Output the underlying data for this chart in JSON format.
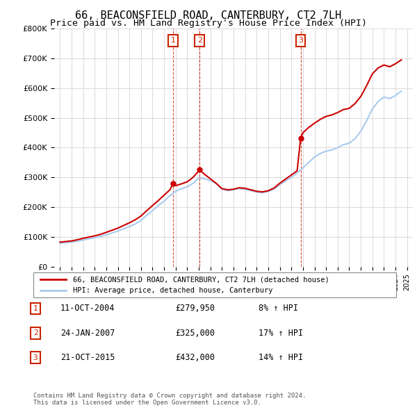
{
  "title": "66, BEACONSFIELD ROAD, CANTERBURY, CT2 7LH",
  "subtitle": "Price paid vs. HM Land Registry's House Price Index (HPI)",
  "title_fontsize": 11,
  "subtitle_fontsize": 9.5,
  "ylabel": "",
  "ylim": [
    0,
    800000
  ],
  "yticks": [
    0,
    100000,
    200000,
    300000,
    400000,
    500000,
    600000,
    700000,
    800000
  ],
  "ytick_labels": [
    "£0",
    "£100K",
    "£200K",
    "£300K",
    "£400K",
    "£500K",
    "£600K",
    "£700K",
    "£800K"
  ],
  "xlim_start": 1994.5,
  "xlim_end": 2025.5,
  "xticks": [
    1995,
    1996,
    1997,
    1998,
    1999,
    2000,
    2001,
    2002,
    2003,
    2004,
    2005,
    2006,
    2007,
    2008,
    2009,
    2010,
    2011,
    2012,
    2013,
    2014,
    2015,
    2016,
    2017,
    2018,
    2019,
    2020,
    2021,
    2022,
    2023,
    2024,
    2025
  ],
  "background_color": "#ffffff",
  "grid_color": "#dddddd",
  "line_color_red": "#cc0000",
  "line_color_blue": "#aaccee",
  "transaction_color": "#cc0000",
  "marker_box_color": "#cc2200",
  "footer_text": "Contains HM Land Registry data © Crown copyright and database right 2024.\nThis data is licensed under the Open Government Licence v3.0.",
  "legend_label_red": "66, BEACONSFIELD ROAD, CANTERBURY, CT2 7LH (detached house)",
  "legend_label_blue": "HPI: Average price, detached house, Canterbury",
  "transactions": [
    {
      "num": 1,
      "year": 2004.78,
      "price": 279950,
      "date": "11-OCT-2004",
      "hpi_pct": "8%"
    },
    {
      "num": 2,
      "year": 2007.07,
      "price": 325000,
      "date": "24-JAN-2007",
      "hpi_pct": "17%"
    },
    {
      "num": 3,
      "year": 2015.8,
      "price": 432000,
      "date": "21-OCT-2015",
      "hpi_pct": "14%"
    }
  ],
  "hpi_data_x": [
    1995,
    1995.5,
    1996,
    1996.5,
    1997,
    1997.5,
    1998,
    1998.5,
    1999,
    1999.5,
    2000,
    2000.5,
    2001,
    2001.5,
    2002,
    2002.5,
    2003,
    2003.5,
    2004,
    2004.5,
    2005,
    2005.5,
    2006,
    2006.5,
    2007,
    2007.5,
    2008,
    2008.5,
    2009,
    2009.5,
    2010,
    2010.5,
    2011,
    2011.5,
    2012,
    2012.5,
    2013,
    2013.5,
    2014,
    2014.5,
    2015,
    2015.5,
    2016,
    2016.5,
    2017,
    2017.5,
    2018,
    2018.5,
    2019,
    2019.5,
    2020,
    2020.5,
    2021,
    2021.5,
    2022,
    2022.5,
    2023,
    2023.5,
    2024,
    2024.5
  ],
  "hpi_data_y": [
    78000,
    80000,
    82000,
    85000,
    89000,
    93000,
    97000,
    101000,
    107000,
    113000,
    119000,
    127000,
    135000,
    143000,
    155000,
    172000,
    188000,
    205000,
    220000,
    238000,
    253000,
    262000,
    268000,
    280000,
    298000,
    295000,
    290000,
    278000,
    260000,
    255000,
    258000,
    262000,
    260000,
    255000,
    250000,
    248000,
    252000,
    260000,
    275000,
    288000,
    300000,
    315000,
    332000,
    350000,
    368000,
    380000,
    388000,
    392000,
    400000,
    410000,
    415000,
    430000,
    455000,
    490000,
    530000,
    555000,
    570000,
    565000,
    575000,
    590000
  ],
  "red_data_x": [
    1995,
    1995.5,
    1996,
    1996.5,
    1997,
    1997.5,
    1998,
    1998.5,
    1999,
    1999.5,
    2000,
    2000.5,
    2001,
    2001.5,
    2002,
    2002.5,
    2003,
    2003.5,
    2004,
    2004.5,
    2004.78,
    2005,
    2005.5,
    2006,
    2006.5,
    2007.07,
    2007.5,
    2008,
    2008.5,
    2009,
    2009.5,
    2010,
    2010.5,
    2011,
    2011.5,
    2012,
    2012.5,
    2013,
    2013.5,
    2014,
    2014.5,
    2015,
    2015.5,
    2015.8,
    2016,
    2016.5,
    2017,
    2017.5,
    2018,
    2018.5,
    2019,
    2019.5,
    2020,
    2020.5,
    2021,
    2021.5,
    2022,
    2022.5,
    2023,
    2023.5,
    2024,
    2024.5
  ],
  "red_data_y": [
    82000,
    84000,
    86000,
    90000,
    95000,
    99000,
    103000,
    108000,
    115000,
    122000,
    129000,
    138000,
    147000,
    157000,
    170000,
    188000,
    205000,
    222000,
    240000,
    258000,
    279950,
    272000,
    278000,
    285000,
    300000,
    325000,
    310000,
    295000,
    280000,
    262000,
    258000,
    260000,
    265000,
    263000,
    258000,
    253000,
    251000,
    255000,
    264000,
    280000,
    294000,
    308000,
    322000,
    432000,
    450000,
    468000,
    482000,
    495000,
    505000,
    510000,
    518000,
    528000,
    532000,
    548000,
    572000,
    608000,
    648000,
    668000,
    678000,
    672000,
    682000,
    695000
  ]
}
